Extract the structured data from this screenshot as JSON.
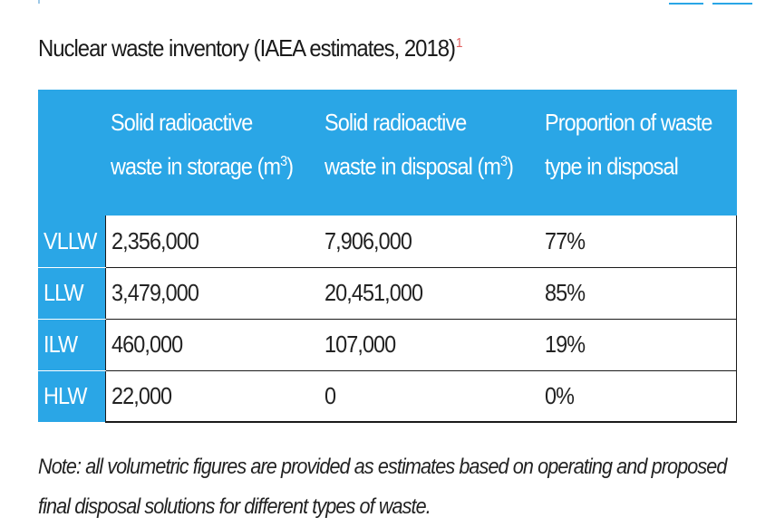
{
  "title": "Nuclear waste inventory (IAEA estimates, 2018)",
  "footnote_marker": "1",
  "table": {
    "corner": "",
    "headers": [
      {
        "line1": "Solid radioactive",
        "line2_pre": "waste in storage (m",
        "sup": "3",
        "line2_post": ")"
      },
      {
        "line1": "Solid radioactive",
        "line2_pre": "waste in disposal (m",
        "sup": "3",
        "line2_post": ")"
      },
      {
        "line1": "Proportion of waste",
        "line2_pre": "type in disposal",
        "sup": "",
        "line2_post": ""
      }
    ],
    "rows": [
      {
        "label": "VLLW",
        "storage": "2,356,000",
        "disposal": "7,906,000",
        "proportion": "77%"
      },
      {
        "label": "LLW",
        "storage": "3,479,000",
        "disposal": "20,451,000",
        "proportion": "85%"
      },
      {
        "label": "ILW",
        "storage": "460,000",
        "disposal": "107,000",
        "proportion": "19%"
      },
      {
        "label": "HLW",
        "storage": "22,000",
        "disposal": "0",
        "proportion": "0%"
      }
    ]
  },
  "note": {
    "line1": "Note: all volumetric figures are provided as estimates based on operating and proposed",
    "line2": "final disposal solutions for different types of waste."
  },
  "colors": {
    "header_bg": "#2aa6e6",
    "header_text": "#ffffff",
    "footnote": "#e06060"
  }
}
